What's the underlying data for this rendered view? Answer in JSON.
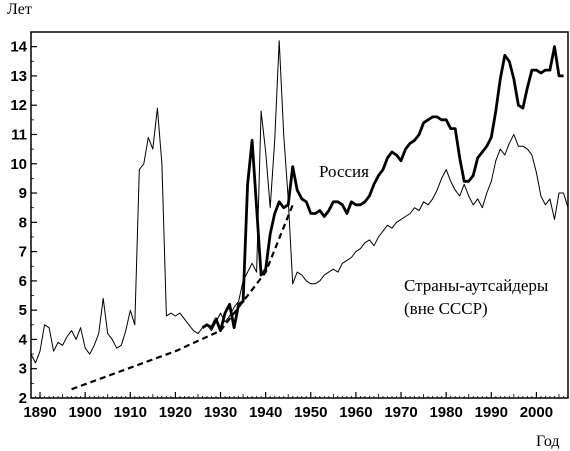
{
  "chart_data": {
    "type": "line",
    "title": "",
    "xlabel": "Год",
    "ylabel": "Лет",
    "xlim": [
      1888,
      2007
    ],
    "ylim": [
      2,
      14.5
    ],
    "x_ticks": [
      "1890",
      "1900",
      "1910",
      "1920",
      "1930",
      "1940",
      "1950",
      "1960",
      "1970",
      "1980",
      "1990",
      "2000"
    ],
    "y_ticks": [
      "2",
      "3",
      "4",
      "5",
      "6",
      "7",
      "8",
      "9",
      "10",
      "11",
      "12",
      "13",
      "14"
    ],
    "grid": false,
    "annotations": [
      {
        "text": "Россия"
      },
      {
        "text": "Страны-аутсайдеры"
      },
      {
        "text": "(вне СССР)"
      }
    ],
    "series": [
      {
        "name": "Страны-аутсайдеры (вне СССР)",
        "style": "thin",
        "points": [
          [
            1888,
            3.5
          ],
          [
            1889,
            3.2
          ],
          [
            1890,
            3.6
          ],
          [
            1891,
            4.5
          ],
          [
            1892,
            4.4
          ],
          [
            1893,
            3.6
          ],
          [
            1894,
            3.9
          ],
          [
            1895,
            3.8
          ],
          [
            1896,
            4.1
          ],
          [
            1897,
            4.3
          ],
          [
            1898,
            4.0
          ],
          [
            1899,
            4.4
          ],
          [
            1900,
            3.7
          ],
          [
            1901,
            3.5
          ],
          [
            1902,
            3.8
          ],
          [
            1903,
            4.2
          ],
          [
            1904,
            5.4
          ],
          [
            1905,
            4.2
          ],
          [
            1906,
            4.0
          ],
          [
            1907,
            3.7
          ],
          [
            1908,
            3.8
          ],
          [
            1909,
            4.3
          ],
          [
            1910,
            5.0
          ],
          [
            1911,
            4.5
          ],
          [
            1912,
            9.8
          ],
          [
            1913,
            10.0
          ],
          [
            1914,
            10.9
          ],
          [
            1915,
            10.5
          ],
          [
            1916,
            11.9
          ],
          [
            1917,
            10.0
          ],
          [
            1918,
            4.8
          ],
          [
            1919,
            4.9
          ],
          [
            1920,
            4.8
          ],
          [
            1921,
            4.9
          ],
          [
            1922,
            4.7
          ],
          [
            1923,
            4.5
          ],
          [
            1924,
            4.3
          ],
          [
            1925,
            4.2
          ],
          [
            1926,
            4.4
          ],
          [
            1927,
            4.5
          ],
          [
            1928,
            4.3
          ],
          [
            1929,
            4.6
          ],
          [
            1930,
            4.9
          ],
          [
            1931,
            4.6
          ],
          [
            1932,
            4.8
          ],
          [
            1933,
            5.1
          ],
          [
            1934,
            5.3
          ],
          [
            1935,
            6.0
          ],
          [
            1936,
            6.3
          ],
          [
            1937,
            6.6
          ],
          [
            1938,
            6.3
          ],
          [
            1939,
            11.8
          ],
          [
            1940,
            10.4
          ],
          [
            1941,
            8.5
          ],
          [
            1942,
            10.8
          ],
          [
            1943,
            14.2
          ],
          [
            1944,
            11.0
          ],
          [
            1945,
            8.8
          ],
          [
            1946,
            5.9
          ],
          [
            1947,
            6.3
          ],
          [
            1948,
            6.2
          ],
          [
            1949,
            6.0
          ],
          [
            1950,
            5.9
          ],
          [
            1951,
            5.9
          ],
          [
            1952,
            6.0
          ],
          [
            1953,
            6.2
          ],
          [
            1954,
            6.3
          ],
          [
            1955,
            6.4
          ],
          [
            1956,
            6.3
          ],
          [
            1957,
            6.6
          ],
          [
            1958,
            6.7
          ],
          [
            1959,
            6.8
          ],
          [
            1960,
            7.0
          ],
          [
            1961,
            7.1
          ],
          [
            1962,
            7.3
          ],
          [
            1963,
            7.4
          ],
          [
            1964,
            7.2
          ],
          [
            1965,
            7.5
          ],
          [
            1966,
            7.7
          ],
          [
            1967,
            7.9
          ],
          [
            1968,
            7.8
          ],
          [
            1969,
            8.0
          ],
          [
            1970,
            8.1
          ],
          [
            1971,
            8.2
          ],
          [
            1972,
            8.3
          ],
          [
            1973,
            8.5
          ],
          [
            1974,
            8.4
          ],
          [
            1975,
            8.7
          ],
          [
            1976,
            8.6
          ],
          [
            1977,
            8.8
          ],
          [
            1978,
            9.1
          ],
          [
            1979,
            9.5
          ],
          [
            1980,
            9.8
          ],
          [
            1981,
            9.4
          ],
          [
            1982,
            9.1
          ],
          [
            1983,
            8.9
          ],
          [
            1984,
            9.3
          ],
          [
            1985,
            8.9
          ],
          [
            1986,
            8.6
          ],
          [
            1987,
            8.8
          ],
          [
            1988,
            8.5
          ],
          [
            1989,
            9.0
          ],
          [
            1990,
            9.4
          ],
          [
            1991,
            10.1
          ],
          [
            1992,
            10.5
          ],
          [
            1993,
            10.3
          ],
          [
            1994,
            10.7
          ],
          [
            1995,
            11.0
          ],
          [
            1996,
            10.6
          ],
          [
            1997,
            10.6
          ],
          [
            1998,
            10.5
          ],
          [
            1999,
            10.3
          ],
          [
            2000,
            9.7
          ],
          [
            2001,
            8.9
          ],
          [
            2002,
            8.6
          ],
          [
            2003,
            8.8
          ],
          [
            2004,
            8.1
          ],
          [
            2005,
            9.0
          ],
          [
            2006,
            9.0
          ],
          [
            2007,
            8.5
          ]
        ]
      },
      {
        "name": "Россия",
        "style": "thick",
        "points": [
          [
            1926,
            4.4
          ],
          [
            1927,
            4.5
          ],
          [
            1928,
            4.4
          ],
          [
            1929,
            4.7
          ],
          [
            1930,
            4.3
          ],
          [
            1931,
            4.9
          ],
          [
            1932,
            5.2
          ],
          [
            1933,
            4.4
          ],
          [
            1934,
            5.2
          ],
          [
            1935,
            5.3
          ],
          [
            1936,
            9.3
          ],
          [
            1937,
            10.8
          ],
          [
            1938,
            8.5
          ],
          [
            1939,
            6.2
          ],
          [
            1940,
            6.4
          ],
          [
            1941,
            7.6
          ],
          [
            1942,
            8.3
          ],
          [
            1943,
            8.7
          ],
          [
            1944,
            8.5
          ],
          [
            1945,
            8.6
          ],
          [
            1946,
            9.9
          ],
          [
            1947,
            9.1
          ],
          [
            1948,
            8.8
          ],
          [
            1949,
            8.7
          ],
          [
            1950,
            8.3
          ],
          [
            1951,
            8.3
          ],
          [
            1952,
            8.4
          ],
          [
            1953,
            8.2
          ],
          [
            1954,
            8.4
          ],
          [
            1955,
            8.7
          ],
          [
            1956,
            8.7
          ],
          [
            1957,
            8.6
          ],
          [
            1958,
            8.3
          ],
          [
            1959,
            8.7
          ],
          [
            1960,
            8.6
          ],
          [
            1961,
            8.6
          ],
          [
            1962,
            8.7
          ],
          [
            1963,
            8.9
          ],
          [
            1964,
            9.3
          ],
          [
            1965,
            9.6
          ],
          [
            1966,
            9.8
          ],
          [
            1967,
            10.2
          ],
          [
            1968,
            10.4
          ],
          [
            1969,
            10.3
          ],
          [
            1970,
            10.1
          ],
          [
            1971,
            10.5
          ],
          [
            1972,
            10.7
          ],
          [
            1973,
            10.8
          ],
          [
            1974,
            11.0
          ],
          [
            1975,
            11.4
          ],
          [
            1976,
            11.5
          ],
          [
            1977,
            11.6
          ],
          [
            1978,
            11.6
          ],
          [
            1979,
            11.5
          ],
          [
            1980,
            11.5
          ],
          [
            1981,
            11.2
          ],
          [
            1982,
            11.2
          ],
          [
            1983,
            10.2
          ],
          [
            1984,
            9.4
          ],
          [
            1985,
            9.4
          ],
          [
            1986,
            9.6
          ],
          [
            1987,
            10.2
          ],
          [
            1988,
            10.4
          ],
          [
            1989,
            10.6
          ],
          [
            1990,
            10.9
          ],
          [
            1991,
            11.8
          ],
          [
            1992,
            12.9
          ],
          [
            1993,
            13.7
          ],
          [
            1994,
            13.5
          ],
          [
            1995,
            12.9
          ],
          [
            1996,
            12.0
          ],
          [
            1997,
            11.9
          ],
          [
            1998,
            12.6
          ],
          [
            1999,
            13.2
          ],
          [
            2000,
            13.2
          ],
          [
            2001,
            13.1
          ],
          [
            2002,
            13.2
          ],
          [
            2003,
            13.2
          ],
          [
            2004,
            14.0
          ],
          [
            2005,
            13.0
          ],
          [
            2006,
            13.0
          ]
        ]
      },
      {
        "name": "",
        "style": "dashed",
        "points": [
          [
            1897,
            2.3
          ],
          [
            1920,
            3.6
          ],
          [
            1930,
            4.3
          ],
          [
            1940,
            6.3
          ],
          [
            1946,
            8.6
          ]
        ]
      }
    ]
  }
}
